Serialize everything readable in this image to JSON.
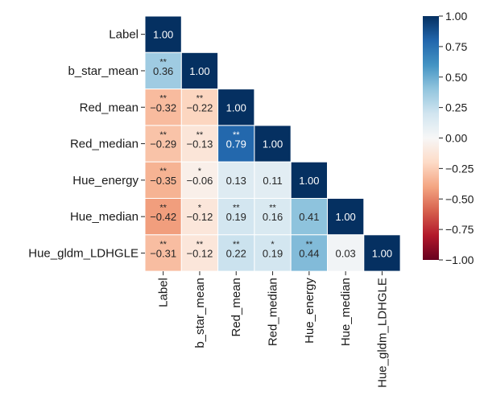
{
  "chart_data": {
    "type": "heatmap",
    "title": "",
    "variables": [
      "Label",
      "b_star_mean",
      "Red_mean",
      "Red_median",
      "Hue_energy",
      "Hue_median",
      "Hue_gldm_LDHGLE"
    ],
    "matrix": [
      [
        1.0,
        null,
        null,
        null,
        null,
        null,
        null
      ],
      [
        0.36,
        1.0,
        null,
        null,
        null,
        null,
        null
      ],
      [
        -0.32,
        -0.22,
        1.0,
        null,
        null,
        null,
        null
      ],
      [
        -0.29,
        -0.13,
        0.79,
        1.0,
        null,
        null,
        null
      ],
      [
        -0.35,
        -0.06,
        0.13,
        0.11,
        1.0,
        null,
        null
      ],
      [
        -0.42,
        -0.12,
        0.19,
        0.16,
        0.41,
        1.0,
        null
      ],
      [
        -0.31,
        -0.12,
        0.22,
        0.19,
        0.44,
        0.03,
        1.0
      ]
    ],
    "cell_labels": [
      [
        "1.00",
        "",
        "",
        "",
        "",
        "",
        ""
      ],
      [
        "0.36",
        "1.00",
        "",
        "",
        "",
        "",
        ""
      ],
      [
        "−0.32",
        "−0.22",
        "1.00",
        "",
        "",
        "",
        ""
      ],
      [
        "−0.29",
        "−0.13",
        "0.79",
        "1.00",
        "",
        "",
        ""
      ],
      [
        "−0.35",
        "−0.06",
        "0.13",
        "0.11",
        "1.00",
        "",
        ""
      ],
      [
        "−0.42",
        "−0.12",
        "0.19",
        "0.16",
        "0.41",
        "1.00",
        ""
      ],
      [
        "−0.31",
        "−0.12",
        "0.22",
        "0.19",
        "0.44",
        "0.03",
        "1.00"
      ]
    ],
    "significance": [
      [
        "",
        "",
        "",
        "",
        "",
        "",
        ""
      ],
      [
        "**",
        "",
        "",
        "",
        "",
        "",
        ""
      ],
      [
        "**",
        "**",
        "",
        "",
        "",
        "",
        ""
      ],
      [
        "**",
        "**",
        "**",
        "",
        "",
        "",
        ""
      ],
      [
        "**",
        "*",
        "",
        "",
        "",
        "",
        ""
      ],
      [
        "**",
        "*",
        "**",
        "**",
        "",
        "",
        ""
      ],
      [
        "**",
        "**",
        "**",
        "*",
        "**",
        "",
        ""
      ]
    ],
    "colorbar": {
      "vmin": -1.0,
      "vmax": 1.0,
      "ticks": [
        1.0,
        0.75,
        0.5,
        0.25,
        0.0,
        -0.25,
        -0.5,
        -0.75,
        -1.0
      ],
      "tick_labels": [
        "1.00",
        "0.75",
        "0.50",
        "0.25",
        "0.00",
        "−0.25",
        "−0.50",
        "−0.75",
        "−1.00"
      ],
      "colormap": "RdBu",
      "color_stops": [
        "#67001f",
        "#b2182b",
        "#d6604d",
        "#f4a582",
        "#fddbc7",
        "#f7f7f7",
        "#d1e5f0",
        "#92c5de",
        "#4393c3",
        "#2166ac",
        "#053061"
      ]
    }
  }
}
